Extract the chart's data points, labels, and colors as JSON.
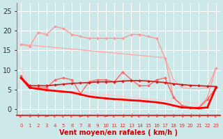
{
  "background_color": "#cce8e8",
  "grid_color": "#ffffff",
  "x_labels": [
    "0",
    "1",
    "2",
    "3",
    "4",
    "5",
    "6",
    "7",
    "8",
    "9",
    "10",
    "11",
    "12",
    "13",
    "14",
    "15",
    "16",
    "17",
    "18",
    "19",
    "20",
    "21",
    "22",
    "23"
  ],
  "xlabel": "Vent moyen/en rafales ( km/h )",
  "ylim": [
    -1.5,
    27
  ],
  "yticks": [
    0,
    5,
    10,
    15,
    20,
    25
  ],
  "line_upper_straight": {
    "y": [
      16.5,
      16.3,
      16.1,
      15.9,
      15.7,
      15.5,
      15.3,
      15.1,
      14.9,
      14.7,
      14.5,
      14.3,
      14.1,
      13.9,
      13.7,
      13.5,
      13.3,
      13.1,
      7.5,
      5.5,
      5.3,
      5.2,
      5.5,
      10.5
    ],
    "color": "#ffaaaa",
    "lw": 1.0,
    "marker": null
  },
  "line_lower_straight": {
    "y": [
      10.5,
      5.5,
      5.3,
      5.1,
      4.9,
      4.7,
      4.5,
      4.3,
      4.1,
      3.9,
      3.7,
      3.5,
      3.3,
      3.1,
      2.9,
      2.7,
      2.5,
      2.3,
      2.1,
      1.9,
      1.7,
      1.5,
      1.3,
      5.5
    ],
    "color": "#ffcccc",
    "lw": 1.0,
    "marker": null
  },
  "line_pink_markers": {
    "y": [
      16.5,
      16.0,
      19.5,
      19.0,
      21.0,
      20.5,
      19.0,
      18.5,
      18.0,
      18.0,
      18.0,
      18.0,
      18.0,
      19.0,
      19.0,
      18.5,
      18.0,
      13.0,
      3.0,
      1.0,
      0.5,
      0.5,
      3.0,
      10.5
    ],
    "color": "#ff9999",
    "lw": 1.0,
    "marker": "D",
    "markersize": 2.0
  },
  "line_red_markers": {
    "y": [
      8.5,
      5.5,
      5.5,
      5.5,
      7.5,
      8.0,
      7.5,
      4.0,
      7.0,
      7.5,
      7.5,
      7.0,
      9.5,
      7.5,
      6.0,
      6.0,
      7.5,
      8.0,
      3.0,
      1.0,
      0.5,
      0.5,
      2.5,
      5.5
    ],
    "color": "#ff6666",
    "lw": 1.0,
    "marker": "D",
    "markersize": 2.0
  },
  "line_dark_smooth": {
    "y": [
      8.0,
      6.0,
      6.0,
      6.0,
      6.2,
      6.4,
      6.6,
      6.7,
      6.8,
      7.0,
      7.0,
      7.0,
      7.2,
      7.3,
      7.3,
      7.2,
      7.0,
      6.8,
      6.5,
      6.3,
      6.1,
      6.0,
      5.9,
      5.8
    ],
    "color": "#cc2222",
    "lw": 1.3,
    "marker": "D",
    "markersize": 2.0
  },
  "line_bold_decreasing": {
    "y": [
      8.0,
      5.5,
      5.2,
      4.9,
      4.7,
      4.5,
      4.3,
      3.8,
      3.3,
      3.0,
      2.8,
      2.6,
      2.5,
      2.3,
      2.2,
      2.0,
      1.8,
      1.5,
      1.0,
      0.5,
      0.4,
      0.3,
      0.5,
      5.5
    ],
    "color": "#ff0000",
    "lw": 2.0,
    "marker": "s",
    "markersize": 1.8
  },
  "wind_chars": [
    "↙",
    "↓",
    "↓",
    "←",
    "↙",
    "↙",
    "↙",
    "←",
    "↙",
    "↓",
    "←",
    "↙",
    "↓",
    "↓",
    "↙",
    "↓",
    "↓",
    "↙",
    "↓",
    "↓",
    "↓",
    "↓",
    "↓",
    "↙"
  ],
  "wind_color": "#dd3333",
  "xlabel_color": "#cc0000",
  "tick_color": "#dd3333"
}
